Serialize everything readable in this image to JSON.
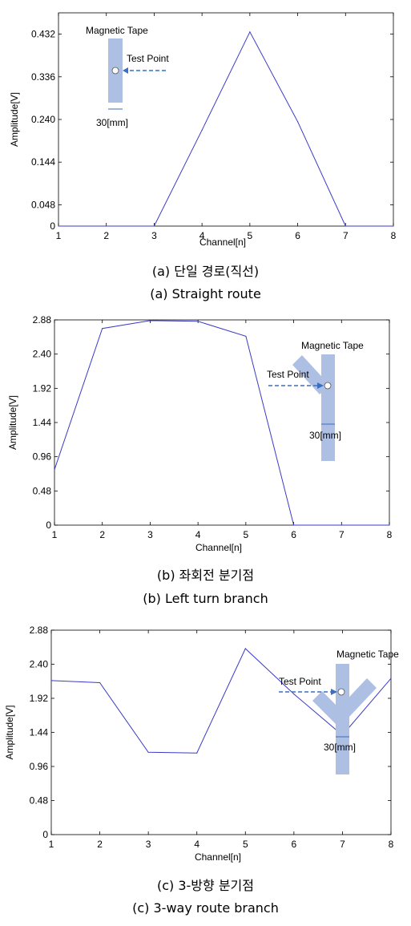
{
  "chart_data": [
    {
      "type": "line",
      "xlabel": "Channel[n]",
      "ylabel": "Amplitude[V]",
      "x": [
        1,
        2,
        3,
        4,
        5,
        6,
        7,
        8
      ],
      "xticks": [
        "1",
        "2",
        "3",
        "4",
        "5",
        "6",
        "7",
        "8"
      ],
      "yticks": [
        0,
        0.048,
        0.144,
        0.24,
        0.336,
        0.432
      ],
      "ytick_labels": [
        "0",
        "0.048",
        "0.144",
        "0.240",
        "0.336",
        "0.432"
      ],
      "xlim": [
        1,
        8
      ],
      "ylim": [
        0,
        0.48
      ],
      "series": [
        {
          "values": [
            0,
            0,
            0,
            0.216,
            0.437,
            0.235,
            0,
            0
          ]
        }
      ],
      "line_color": "#3a3ac8",
      "inset": {
        "label_tape": "Magnetic Tape",
        "label_point": "Test Point",
        "label_width": "30[mm]",
        "shape": "straight"
      },
      "caption_ko": "(a) 단일 경로(직선)",
      "caption_en": "(a) Straight route"
    },
    {
      "type": "line",
      "xlabel": "Channel[n]",
      "ylabel": "Amplitude[V]",
      "x": [
        1,
        2,
        3,
        4,
        5,
        6,
        7,
        8
      ],
      "xticks": [
        "1",
        "2",
        "3",
        "4",
        "5",
        "6",
        "7",
        "8"
      ],
      "yticks": [
        0,
        0.48,
        0.96,
        1.44,
        1.92,
        2.4,
        2.88
      ],
      "ytick_labels": [
        "0",
        "0.48",
        "0.96",
        "1.44",
        "1.92",
        "2.40",
        "2.88"
      ],
      "xlim": [
        1,
        8
      ],
      "ylim": [
        0,
        2.88
      ],
      "series": [
        {
          "values": [
            0.78,
            2.76,
            2.87,
            2.86,
            2.65,
            0,
            0,
            0
          ]
        }
      ],
      "line_color": "#3a3ac8",
      "inset": {
        "label_tape": "Magnetic Tape",
        "label_point": "Test Point",
        "label_width": "30[mm]",
        "shape": "left-branch"
      },
      "caption_ko": "(b) 좌회전 분기점",
      "caption_en": "(b) Left turn branch"
    },
    {
      "type": "line",
      "xlabel": "Channel[n]",
      "ylabel": "Amplitude[V]",
      "x": [
        1,
        2,
        3,
        4,
        5,
        6,
        7,
        8
      ],
      "xticks": [
        "1",
        "2",
        "3",
        "4",
        "5",
        "6",
        "7",
        "8"
      ],
      "yticks": [
        0,
        0.48,
        0.96,
        1.44,
        1.92,
        2.4,
        2.88
      ],
      "ytick_labels": [
        "0",
        "0.48",
        "0.96",
        "1.44",
        "1.92",
        "2.40",
        "2.88"
      ],
      "xlim": [
        1,
        8
      ],
      "ylim": [
        0,
        2.88
      ],
      "series": [
        {
          "values": [
            2.17,
            2.14,
            1.16,
            1.15,
            2.62,
            1.98,
            1.4,
            2.2
          ]
        }
      ],
      "line_color": "#3a3ac8",
      "inset": {
        "label_tape": "Magnetic Tape",
        "label_point": "Test Point",
        "label_width": "30[mm]",
        "shape": "three-way"
      },
      "caption_ko": "(c) 3-방향 분기점",
      "caption_en": "(c) 3-way route branch"
    }
  ]
}
